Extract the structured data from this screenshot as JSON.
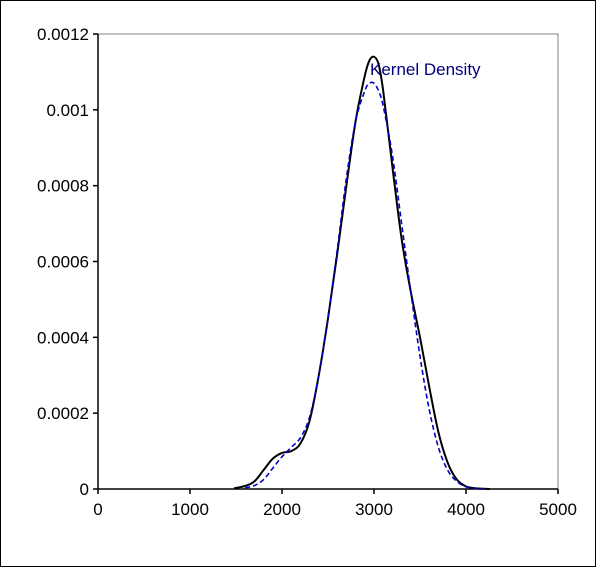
{
  "chart_data": {
    "type": "line",
    "title": "",
    "xlabel": "",
    "ylabel": "",
    "xlim": [
      0,
      5000
    ],
    "ylim": [
      0,
      0.0012
    ],
    "x_ticks": [
      0,
      1000,
      2000,
      3000,
      4000,
      5000
    ],
    "x_tick_labels": [
      "0",
      "1000",
      "2000",
      "3000",
      "4000",
      "5000"
    ],
    "y_ticks": [
      0,
      0.0002,
      0.0004,
      0.0006,
      0.0008,
      0.001,
      0.0012
    ],
    "y_tick_labels": [
      "0",
      "0.0002",
      "0.0004",
      "0.0006",
      "0.0008",
      "0.001",
      "0.0012"
    ],
    "grid": false,
    "annotation": {
      "text": "Kernel Density",
      "x": 3000,
      "y": 0.00111,
      "color": "#00007f"
    },
    "series": [
      {
        "style": "solid",
        "color": "#000000",
        "x": [
          1480,
          1600,
          1700,
          1800,
          1900,
          2000,
          2100,
          2200,
          2300,
          2400,
          2500,
          2600,
          2700,
          2800,
          2900,
          2950,
          3000,
          3050,
          3100,
          3200,
          3300,
          3400,
          3500,
          3600,
          3700,
          3800,
          3900,
          4000,
          4100,
          4200,
          4260
        ],
        "y": [
          2e-06,
          8e-06,
          2e-05,
          5e-05,
          8e-05,
          9.5e-05,
          0.0001,
          0.00012,
          0.00018,
          0.0003,
          0.00045,
          0.00062,
          0.0008,
          0.00097,
          0.00109,
          0.00113,
          0.00114,
          0.00112,
          0.00105,
          0.00085,
          0.00066,
          0.00052,
          0.0004,
          0.00027,
          0.00015,
          7e-05,
          2.5e-05,
          7e-06,
          2e-06,
          5e-07,
          0.0
        ]
      },
      {
        "style": "dashed",
        "color": "#0000cc",
        "x": [
          1600,
          1700,
          1800,
          1900,
          2000,
          2100,
          2200,
          2300,
          2400,
          2500,
          2600,
          2700,
          2800,
          2900,
          2950,
          3000,
          3050,
          3100,
          3200,
          3300,
          3400,
          3500,
          3600,
          3700,
          3800,
          3900,
          4000,
          4100,
          4200
        ],
        "y": [
          3e-06,
          9e-06,
          2.5e-05,
          5.5e-05,
          8.5e-05,
          0.00011,
          0.000135,
          0.00019,
          0.0003,
          0.00045,
          0.00063,
          0.00082,
          0.00097,
          0.00105,
          0.00107,
          0.00107,
          0.00105,
          0.00101,
          0.00088,
          0.0007,
          0.00052,
          0.00035,
          0.00021,
          0.00011,
          5e-05,
          2e-05,
          6e-06,
          2e-06,
          5e-07
        ]
      }
    ]
  }
}
